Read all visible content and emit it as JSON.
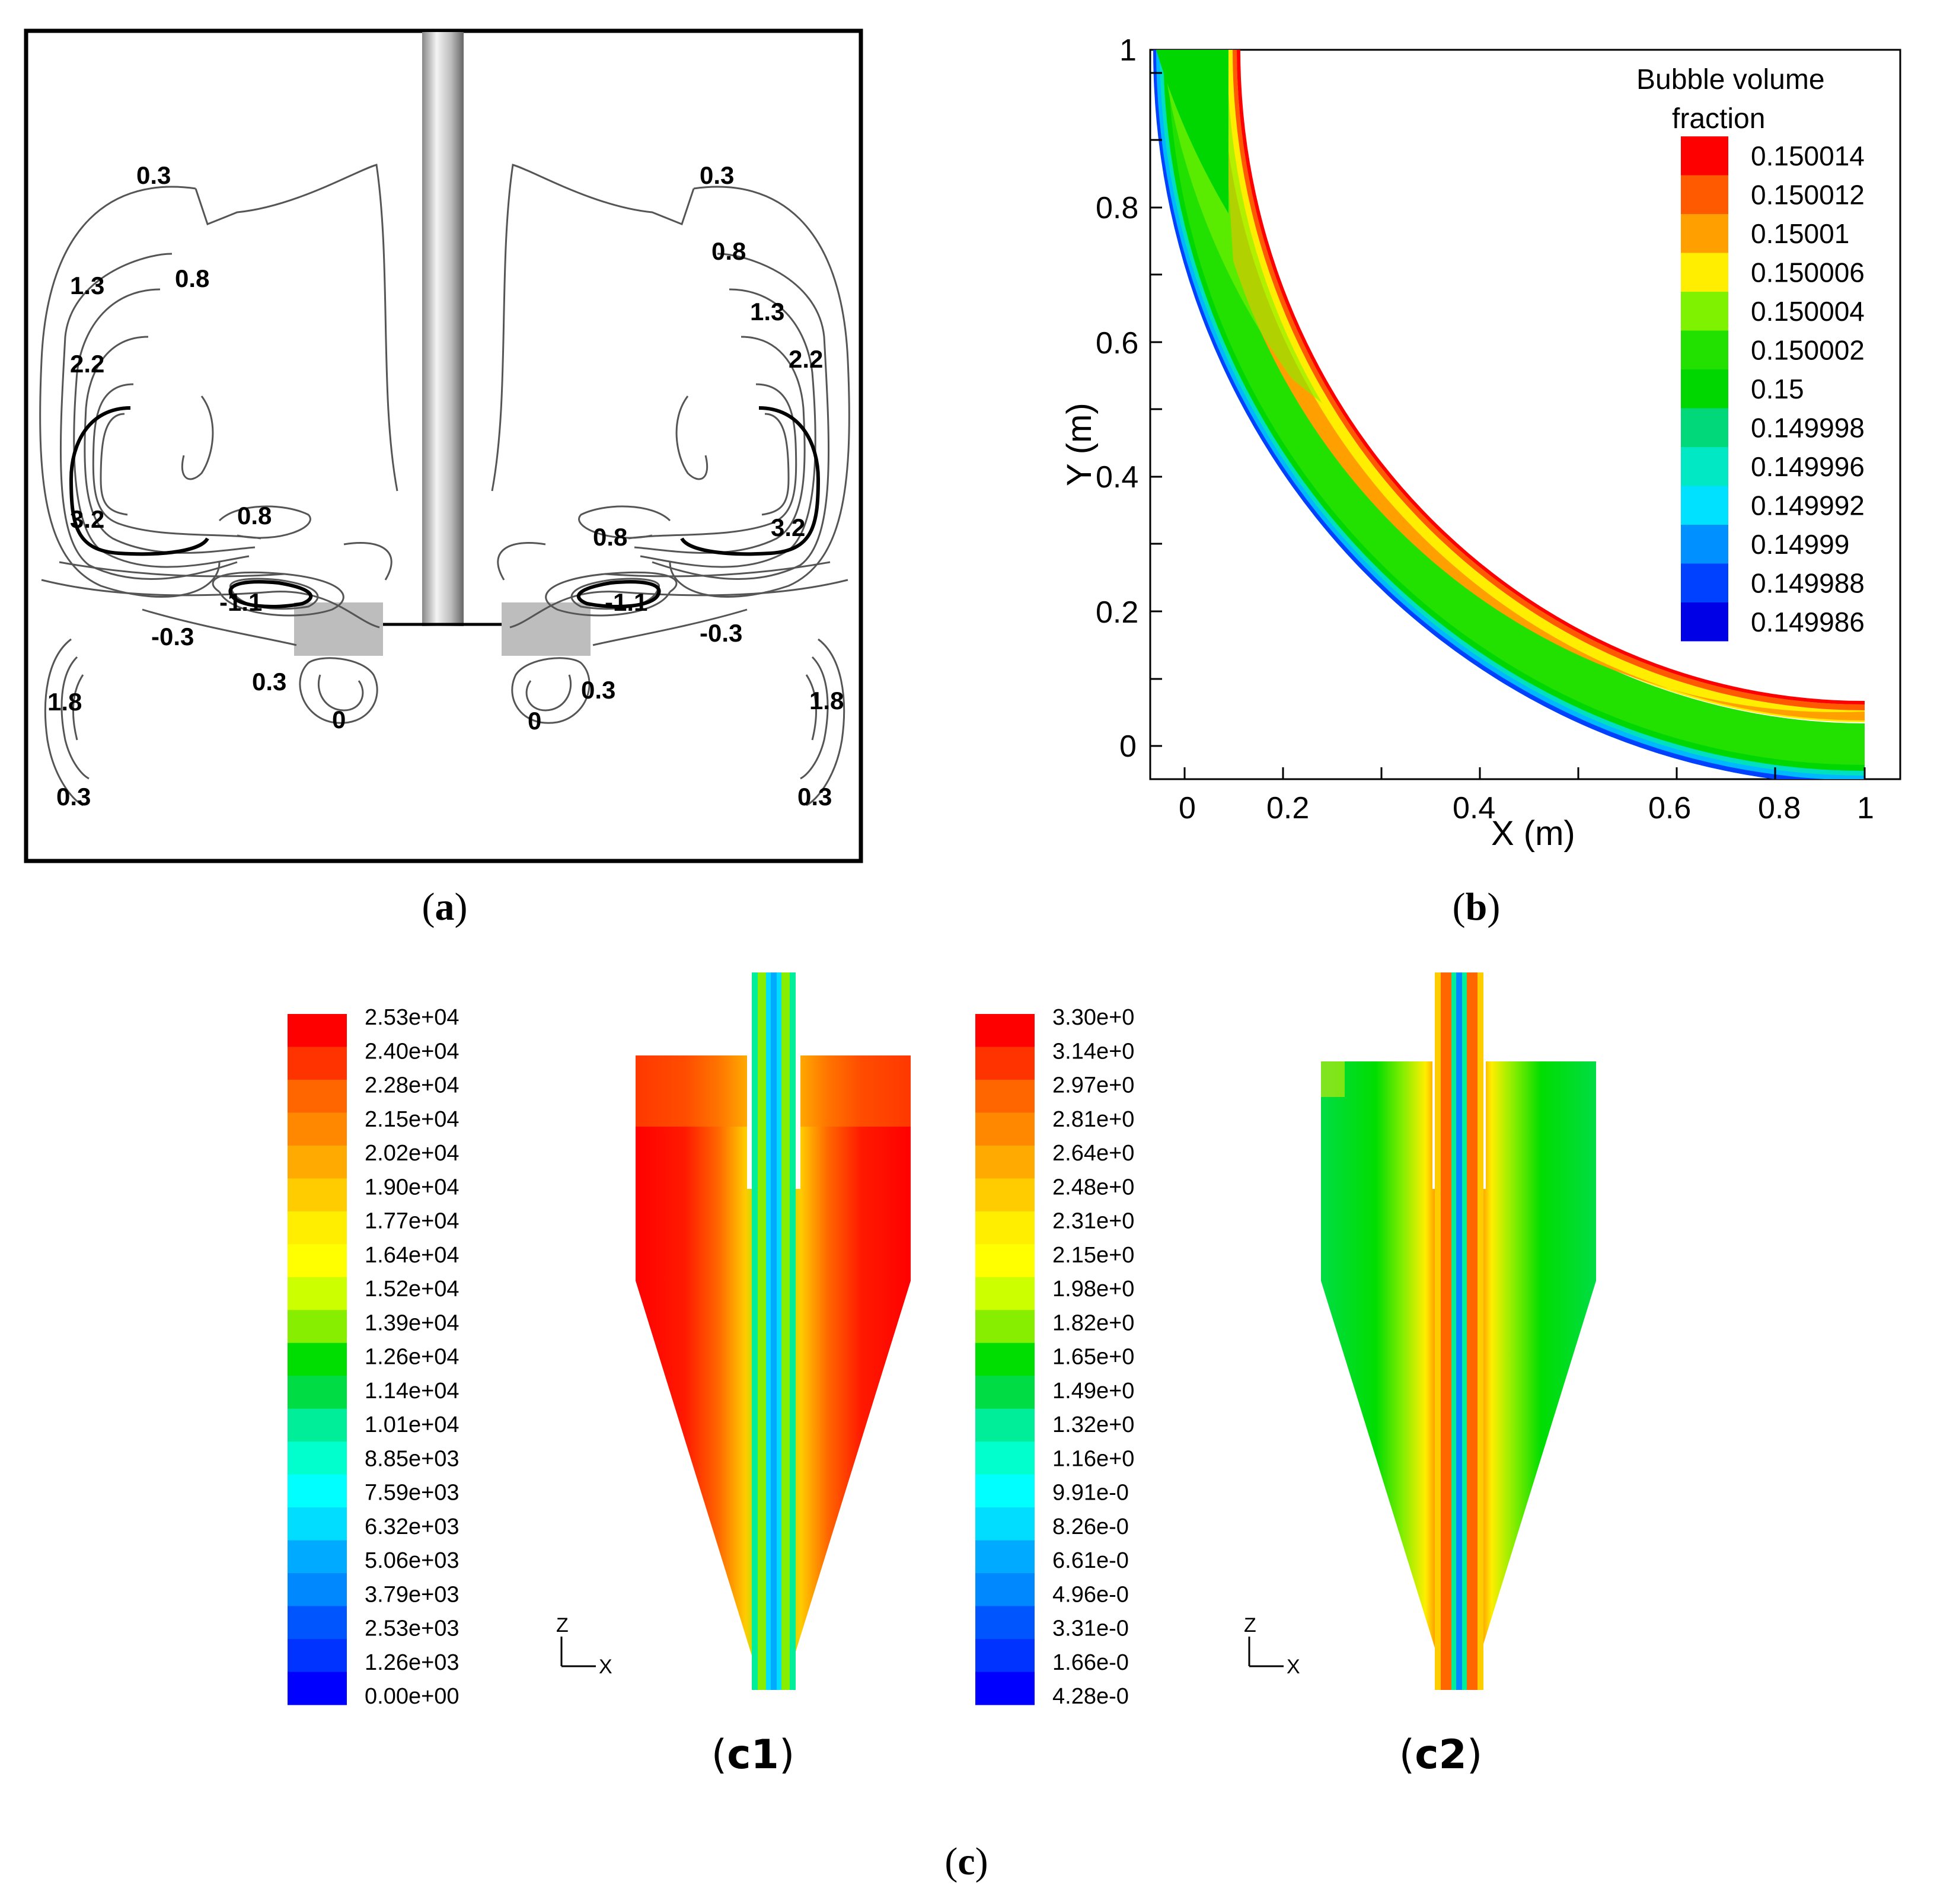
{
  "panel_a": {
    "caption_letter": "a",
    "contour_labels": [
      "0.3",
      "0.8",
      "1.3",
      "2.2",
      "3.2",
      "0.8",
      "-1.1",
      "-0.3",
      "0.3",
      "0",
      "1.8",
      "0.3",
      "0.3",
      "0.8",
      "1.3",
      "2.2",
      "3.2",
      "0.8",
      "-1.1",
      "-0.3",
      "0.3",
      "0",
      "1.8",
      "0.3"
    ]
  },
  "panel_b": {
    "caption_letter": "b",
    "legend_title_1": "Bubble volume",
    "legend_title_2": "fraction",
    "legend": [
      {
        "label": "0.150014",
        "color": "#ff0000"
      },
      {
        "label": "0.150012",
        "color": "#ff5a00"
      },
      {
        "label": "0.15001",
        "color": "#ffa000"
      },
      {
        "label": "0.150006",
        "color": "#ffee00"
      },
      {
        "label": "0.150004",
        "color": "#7ff200"
      },
      {
        "label": "0.150002",
        "color": "#22e000"
      },
      {
        "label": "0.15",
        "color": "#00d600"
      },
      {
        "label": "0.149998",
        "color": "#00d87a"
      },
      {
        "label": "0.149996",
        "color": "#00e8c4"
      },
      {
        "label": "0.149992",
        "color": "#00e0ff"
      },
      {
        "label": "0.14999",
        "color": "#0090ff"
      },
      {
        "label": "0.149988",
        "color": "#0040ff"
      },
      {
        "label": "0.149986",
        "color": "#0000e6"
      }
    ],
    "xlabel": "X (m)",
    "ylabel": "Y (m)",
    "xticks": [
      "0",
      "0.2",
      "0.4",
      "0.6",
      "0.8",
      "1"
    ],
    "yticks": [
      "0",
      "0.2",
      "0.4",
      "0.6",
      "0.8",
      "1"
    ]
  },
  "panel_c1": {
    "caption": "c1",
    "legend": [
      "2.53e+04",
      "2.40e+04",
      "2.28e+04",
      "2.15e+04",
      "2.02e+04",
      "1.90e+04",
      "1.77e+04",
      "1.64e+04",
      "1.52e+04",
      "1.39e+04",
      "1.26e+04",
      "1.14e+04",
      "1.01e+04",
      "8.85e+03",
      "7.59e+03",
      "6.32e+03",
      "5.06e+03",
      "3.79e+03",
      "2.53e+03",
      "1.26e+03",
      "0.00e+00"
    ],
    "axis_z": "Z",
    "axis_x": "X"
  },
  "panel_c2": {
    "caption": "c2",
    "legend": [
      "3.30e+0",
      "3.14e+0",
      "2.97e+0",
      "2.81e+0",
      "2.64e+0",
      "2.48e+0",
      "2.31e+0",
      "2.15e+0",
      "1.98e+0",
      "1.82e+0",
      "1.65e+0",
      "1.49e+0",
      "1.32e+0",
      "1.16e+0",
      "9.91e-0",
      "8.26e-0",
      "6.61e-0",
      "4.96e-0",
      "3.31e-0",
      "1.66e-0",
      "4.28e-0"
    ],
    "axis_z": "Z",
    "axis_x": "X"
  },
  "panel_c": {
    "caption_letter": "c"
  },
  "colors": {
    "scale": [
      "#ff0000",
      "#ff3300",
      "#ff6600",
      "#ff8800",
      "#ffaa00",
      "#ffcc00",
      "#ffee00",
      "#ffff00",
      "#ccff00",
      "#88ee00",
      "#00dd00",
      "#00dd44",
      "#00ee99",
      "#00ffcc",
      "#00ffff",
      "#00ddff",
      "#00aaff",
      "#0088ff",
      "#0055ff",
      "#0033ff",
      "#0000ff"
    ]
  }
}
